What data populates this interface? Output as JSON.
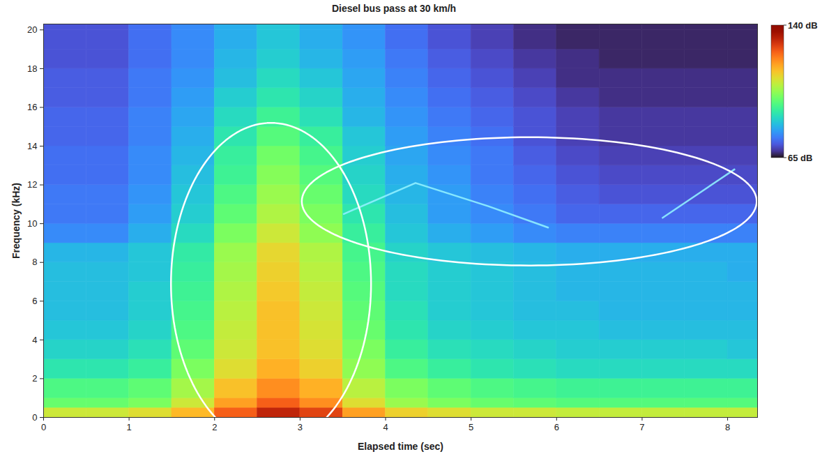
{
  "chart_data": {
    "type": "heatmap",
    "title": "Diesel bus pass at 30 km/h",
    "x_label": "Elapsed time (sec)",
    "y_label": "Frequency (kHz)",
    "xlim": [
      0,
      8.35
    ],
    "ylim": [
      0,
      20.3
    ],
    "xticks": [
      0,
      1,
      2,
      3,
      4,
      5,
      6,
      7,
      8
    ],
    "yticks": [
      0,
      2,
      4,
      6,
      8,
      10,
      12,
      14,
      16,
      18,
      20
    ],
    "time_bins": [
      0,
      0.5,
      1,
      1.5,
      2,
      2.5,
      3,
      3.5,
      4,
      4.5,
      5,
      5.5,
      6,
      6.5,
      7,
      7.5,
      8,
      8.35
    ],
    "freq_bins": [
      0,
      0.5,
      1,
      2,
      3,
      4,
      5,
      6,
      7,
      8,
      9,
      10,
      11,
      12,
      13,
      14,
      15,
      16,
      17,
      18,
      19,
      20,
      20.3
    ],
    "levels": [
      [
        108,
        108,
        110,
        115,
        125,
        132,
        128,
        118,
        112,
        110,
        108,
        108,
        107,
        107,
        107,
        107,
        107
      ],
      [
        98,
        98,
        100,
        108,
        118,
        125,
        120,
        110,
        103,
        100,
        98,
        97,
        96,
        96,
        96,
        96,
        96
      ],
      [
        95,
        95,
        97,
        104,
        114,
        120,
        116,
        106,
        100,
        97,
        95,
        94,
        93,
        93,
        93,
        93,
        93
      ],
      [
        90,
        90,
        92,
        100,
        110,
        116,
        112,
        102,
        95,
        92,
        90,
        89,
        88,
        88,
        88,
        88,
        88
      ],
      [
        87,
        87,
        89,
        97,
        108,
        114,
        110,
        100,
        92,
        89,
        88,
        87,
        86,
        86,
        86,
        86,
        85
      ],
      [
        85,
        85,
        87,
        95,
        107,
        114,
        109,
        98,
        90,
        87,
        86,
        85,
        85,
        84,
        84,
        84,
        84
      ],
      [
        84,
        84,
        86,
        94,
        106,
        114,
        108,
        97,
        89,
        86,
        85,
        84,
        84,
        83,
        83,
        83,
        83
      ],
      [
        84,
        84,
        86,
        93,
        105,
        113,
        107,
        96,
        88,
        86,
        85,
        84,
        83,
        83,
        83,
        83,
        83
      ],
      [
        84,
        84,
        85,
        92,
        104,
        112,
        106,
        95,
        88,
        86,
        85,
        84,
        83,
        83,
        83,
        83,
        82
      ],
      [
        83,
        83,
        85,
        91,
        103,
        111,
        105,
        94,
        87,
        85,
        84,
        83,
        82,
        82,
        82,
        82,
        82
      ],
      [
        78,
        78,
        82,
        88,
        100,
        108,
        102,
        92,
        85,
        82,
        80,
        78,
        77,
        77,
        77,
        77,
        77
      ],
      [
        76,
        76,
        80,
        86,
        97,
        105,
        100,
        90,
        84,
        80,
        78,
        76,
        74,
        74,
        74,
        74,
        74
      ],
      [
        76,
        76,
        79,
        85,
        95,
        103,
        98,
        88,
        83,
        80,
        77,
        75,
        73,
        72,
        72,
        72,
        72
      ],
      [
        75,
        75,
        78,
        84,
        93,
        101,
        96,
        87,
        82,
        79,
        76,
        74,
        72,
        71,
        71,
        71,
        71
      ],
      [
        75,
        75,
        78,
        83,
        92,
        99,
        94,
        86,
        81,
        78,
        76,
        73,
        71,
        70,
        70,
        70,
        70
      ],
      [
        74,
        74,
        77,
        82,
        90,
        96,
        92,
        85,
        80,
        77,
        75,
        72,
        70,
        69,
        69,
        69,
        69
      ],
      [
        74,
        74,
        77,
        81,
        88,
        93,
        89,
        83,
        79,
        76,
        74,
        72,
        70,
        69,
        69,
        69,
        69
      ],
      [
        73,
        73,
        76,
        80,
        86,
        90,
        87,
        82,
        78,
        75,
        73,
        71,
        69,
        68,
        68,
        68,
        68
      ],
      [
        73,
        73,
        76,
        79,
        84,
        88,
        85,
        81,
        77,
        74,
        72,
        70,
        68,
        68,
        68,
        68,
        68
      ],
      [
        72,
        72,
        75,
        78,
        83,
        86,
        83,
        80,
        76,
        73,
        71,
        69,
        68,
        67,
        67,
        67,
        67
      ],
      [
        72,
        72,
        75,
        78,
        82,
        85,
        82,
        79,
        75,
        72,
        70,
        68,
        67,
        67,
        67,
        67,
        67
      ],
      [
        72,
        72,
        75,
        78,
        82,
        85,
        82,
        79,
        75,
        72,
        70,
        68,
        67,
        67,
        67,
        67,
        67
      ]
    ],
    "color_scale": {
      "range": [
        65,
        140
      ],
      "ticks": [
        {
          "value": 65,
          "label": "65 dB"
        },
        {
          "value": 140,
          "label": "140 dB"
        }
      ]
    },
    "tonal_lines": [
      {
        "x": [
          3.51,
          4.35,
          5.2,
          5.9
        ],
        "y": [
          10.5,
          12.1,
          10.9,
          9.8
        ],
        "color": "#8fefff"
      },
      {
        "x": [
          7.24,
          8.08
        ],
        "y": [
          10.3,
          12.8
        ],
        "color": "#8fefff"
      }
    ],
    "ellipses": [
      {
        "cx": 2.66,
        "cy": 6.9,
        "rx": 1.17,
        "ry": 8.3
      },
      {
        "cx": 5.68,
        "cy": 11.15,
        "rx": 2.66,
        "ry": 3.31
      }
    ]
  }
}
